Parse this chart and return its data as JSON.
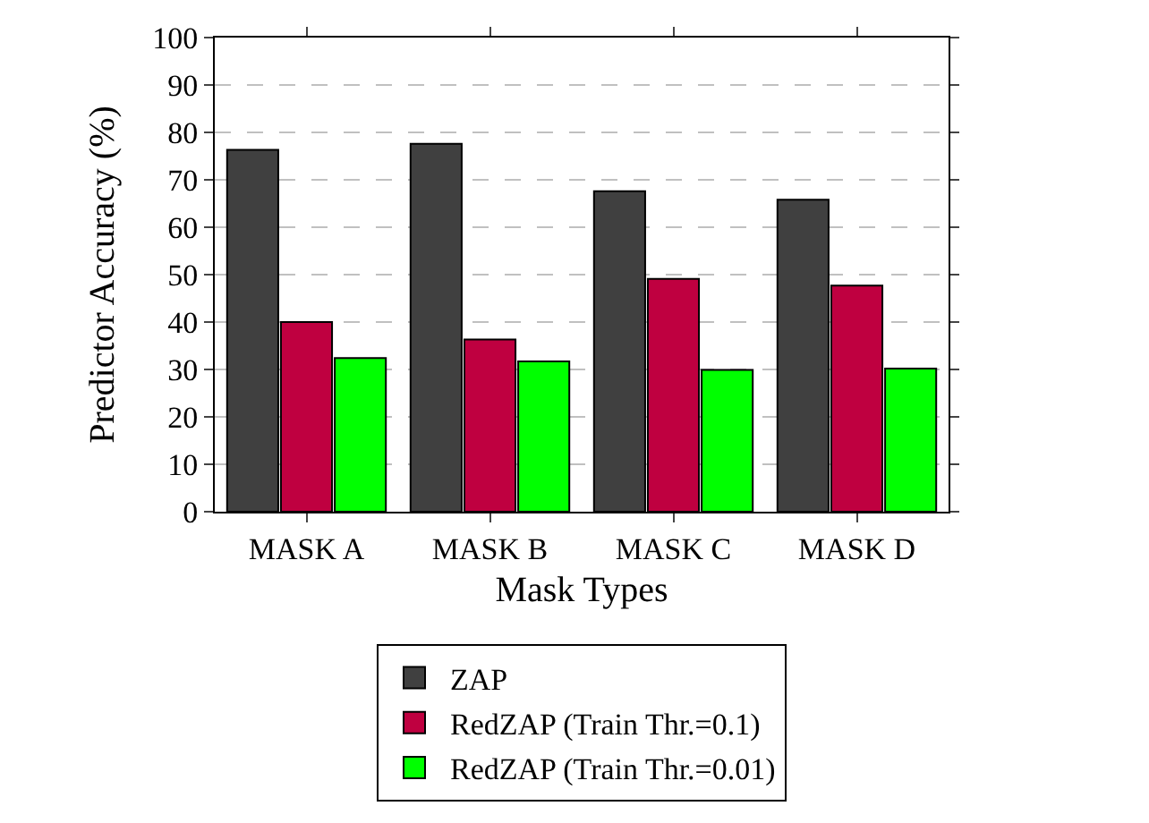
{
  "chart_data": {
    "type": "bar",
    "xlabel": "Mask Types",
    "ylabel": "Predictor Accuracy (%)",
    "categories": [
      "MASK A",
      "MASK B",
      "MASK C",
      "MASK D"
    ],
    "series": [
      {
        "name": "ZAP",
        "color": "#404040",
        "values": [
          76.3,
          77.6,
          67.6,
          65.8
        ]
      },
      {
        "name": "RedZAP (Train Thr.=0.1)",
        "color": "#bf0040",
        "values": [
          40.0,
          36.3,
          49.1,
          47.7
        ]
      },
      {
        "name": "RedZAP (Train Thr.=0.01)",
        "color": "#00ff00",
        "values": [
          32.4,
          31.7,
          29.9,
          30.2
        ]
      }
    ],
    "ylim": [
      0,
      100
    ],
    "yticks": [
      0,
      10,
      20,
      30,
      40,
      50,
      60,
      70,
      80,
      90,
      100
    ],
    "grid": "y",
    "legend": "bottom"
  }
}
